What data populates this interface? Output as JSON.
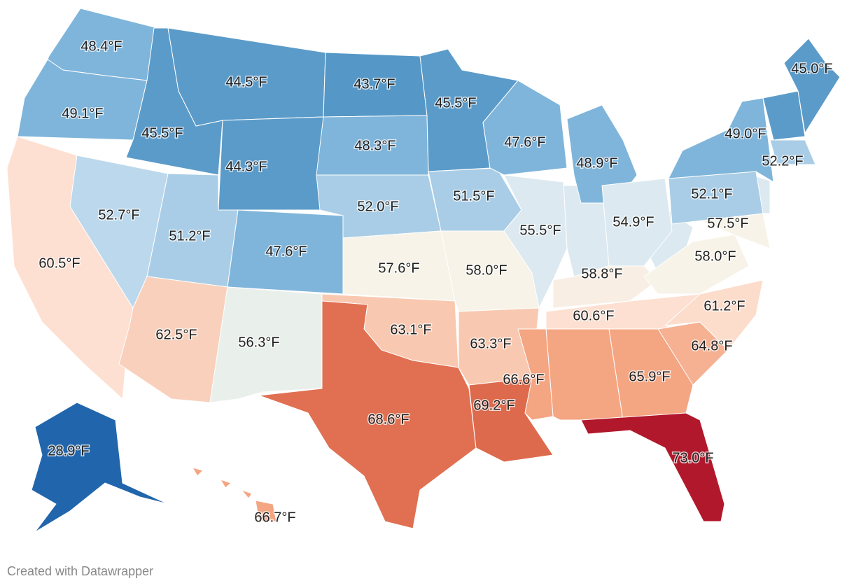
{
  "regions": [
    {
      "value": 48.4,
      "label": "48.4°F",
      "color": "#7fb5da"
    },
    {
      "value": 49.1,
      "label": "49.1°F",
      "color": "#7fb5da"
    },
    {
      "value": 60.5,
      "label": "60.5°F",
      "color": "#fde0d2"
    },
    {
      "value": 52.7,
      "label": "52.7°F",
      "color": "#bcd8ec"
    },
    {
      "value": 45.5,
      "label": "45.5°F",
      "color": "#5b9bc9"
    },
    {
      "value": 44.5,
      "label": "44.5°F",
      "color": "#5b9bc9"
    },
    {
      "value": 44.3,
      "label": "44.3°F",
      "color": "#5b9bc9"
    },
    {
      "value": 51.2,
      "label": "51.2°F",
      "color": "#a9cde6"
    },
    {
      "value": 62.5,
      "label": "62.5°F",
      "color": "#f9d0bb"
    },
    {
      "value": 47.6,
      "label": "47.6°F",
      "color": "#7fb5da"
    },
    {
      "value": 56.3,
      "label": "56.3°F",
      "color": "#e9efeb"
    },
    {
      "value": 43.7,
      "label": "43.7°F",
      "color": "#5597c6"
    },
    {
      "value": 48.3,
      "label": "48.3°F",
      "color": "#7fb5da"
    },
    {
      "value": 52.0,
      "label": "52.0°F",
      "color": "#a9cde6"
    },
    {
      "value": 57.6,
      "label": "57.6°F",
      "color": "#f7f3e8"
    },
    {
      "value": 63.1,
      "label": "63.1°F",
      "color": "#f9c8b0"
    },
    {
      "value": 68.6,
      "label": "68.6°F",
      "color": "#e07051"
    },
    {
      "value": 45.5,
      "label": "45.5°F",
      "color": "#5b9bc9"
    },
    {
      "value": 51.5,
      "label": "51.5°F",
      "color": "#a9cde6"
    },
    {
      "value": 58.0,
      "label": "58.0°F",
      "color": "#f7f3e8"
    },
    {
      "value": 63.3,
      "label": "63.3°F",
      "color": "#f9c8b0"
    },
    {
      "value": 69.2,
      "label": "69.2°F",
      "color": "#dd6a4c"
    },
    {
      "value": 66.6,
      "label": "66.6°F",
      "color": "#f4a582"
    },
    {
      "value": 47.6,
      "label": "47.6°F",
      "color": "#7fb5da"
    },
    {
      "value": 55.5,
      "label": "55.5°F",
      "color": "#dce9f0"
    },
    {
      "value": 48.9,
      "label": "48.9°F",
      "color": "#7fb5da"
    },
    {
      "value": 54.9,
      "label": "54.9°F",
      "color": "#dce9f0"
    },
    {
      "value": 58.8,
      "label": "58.8°F",
      "color": "#f9eee3"
    },
    {
      "value": 60.6,
      "label": "60.6°F",
      "color": "#fde0d2"
    },
    {
      "value": 65.9,
      "label": "65.9°F",
      "color": "#f4a582"
    },
    {
      "value": 73.0,
      "label": "73.0°F",
      "color": "#b2182b"
    },
    {
      "value": 64.8,
      "label": "64.8°F",
      "color": "#f6b193"
    },
    {
      "value": 61.2,
      "label": "61.2°F",
      "color": "#fcdccb"
    },
    {
      "value": 58.0,
      "label": "58.0°F",
      "color": "#f7f3e8"
    },
    {
      "value": 57.5,
      "label": "57.5°F",
      "color": "#f7f3e8"
    },
    {
      "value": 52.1,
      "label": "52.1°F",
      "color": "#a9cde6"
    },
    {
      "value": 49.0,
      "label": "49.0°F",
      "color": "#7fb5da"
    },
    {
      "value": 52.2,
      "label": "52.2°F",
      "color": "#a9cde6"
    },
    {
      "value": 45.0,
      "label": "45.0°F",
      "color": "#5b9bc9"
    },
    {
      "value": 28.9,
      "label": "28.9°F",
      "color": "#2166ac"
    },
    {
      "value": 66.7,
      "label": "66.7°F",
      "color": "#f4a582"
    }
  ],
  "footer": "Created with Datawrapper"
}
